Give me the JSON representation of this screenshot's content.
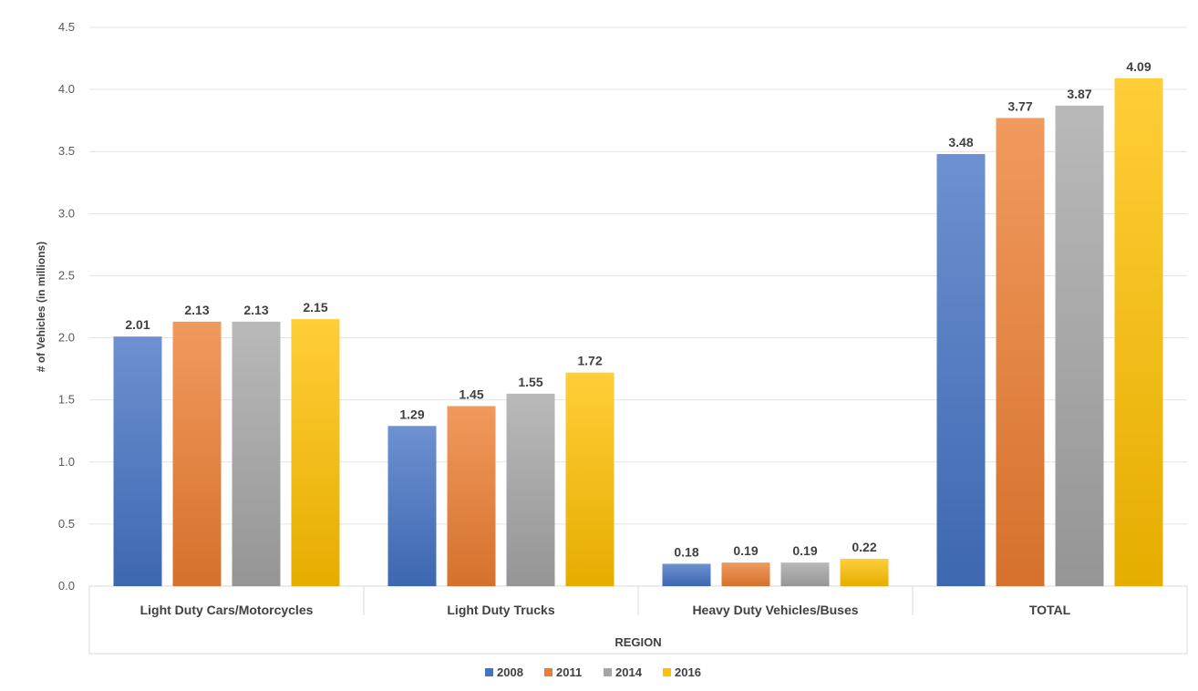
{
  "chart_data": {
    "type": "bar",
    "title": "",
    "xlabel": "REGION",
    "ylabel": "# of Vehicles (in millions)",
    "ylim": [
      0,
      4.5
    ],
    "yticks": [
      "0.0",
      "0.5",
      "1.0",
      "1.5",
      "2.0",
      "2.5",
      "3.0",
      "3.5",
      "4.0",
      "4.5"
    ],
    "grid": true,
    "legend_position": "bottom",
    "categories": [
      "Light Duty Cars/Motorcycles",
      "Light Duty Trucks",
      "Heavy Duty Vehicles/Buses",
      "TOTAL"
    ],
    "series": [
      {
        "name": "2008",
        "color": "#4472C4",
        "values": [
          2.01,
          1.29,
          0.18,
          3.48
        ],
        "labels": [
          "2.01",
          "1.29",
          "0.18",
          "3.48"
        ]
      },
      {
        "name": "2011",
        "color": "#ED7D31",
        "values": [
          2.13,
          1.45,
          0.19,
          3.77
        ],
        "labels": [
          "2.13",
          "1.45",
          "0.19",
          "3.77"
        ]
      },
      {
        "name": "2014",
        "color": "#A5A5A5",
        "values": [
          2.13,
          1.55,
          0.19,
          3.87
        ],
        "labels": [
          "2.13",
          "1.55",
          "0.19",
          "3.87"
        ]
      },
      {
        "name": "2016",
        "color": "#FFC000",
        "values": [
          2.15,
          1.72,
          0.22,
          4.09
        ],
        "labels": [
          "2.15",
          "1.72",
          "0.22",
          "4.09"
        ]
      }
    ]
  }
}
